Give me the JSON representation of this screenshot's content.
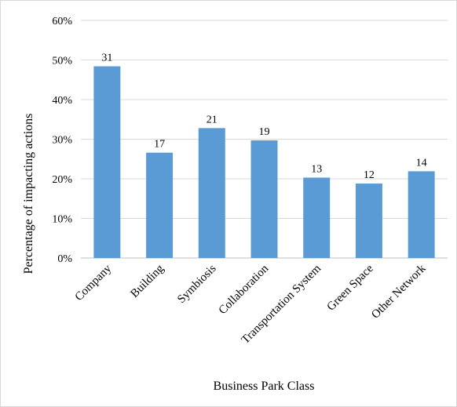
{
  "chart_data": {
    "type": "bar",
    "categories": [
      "Company",
      "Building",
      "Symbiosis",
      "Collaboration",
      "Transportation System",
      "Green Space",
      "Other Network"
    ],
    "values": [
      0.484,
      0.266,
      0.328,
      0.297,
      0.203,
      0.188,
      0.219
    ],
    "data_labels": [
      "31",
      "17",
      "21",
      "19",
      "13",
      "12",
      "14"
    ],
    "xlabel": "Business Park Class",
    "ylabel": "Percentage of impacting actions",
    "ylim": [
      0,
      0.6
    ],
    "y_ticks": [
      {
        "value": 0,
        "label": "0%"
      },
      {
        "value": 0.1,
        "label": "10%"
      },
      {
        "value": 0.2,
        "label": "20%"
      },
      {
        "value": 0.3,
        "label": "30%"
      },
      {
        "value": 0.4,
        "label": "40%"
      },
      {
        "value": 0.5,
        "label": "50%"
      },
      {
        "value": 0.6,
        "label": "60%"
      }
    ],
    "grid": true,
    "bar_color": "#5b9bd5",
    "grid_color": "#d9d9d9"
  }
}
